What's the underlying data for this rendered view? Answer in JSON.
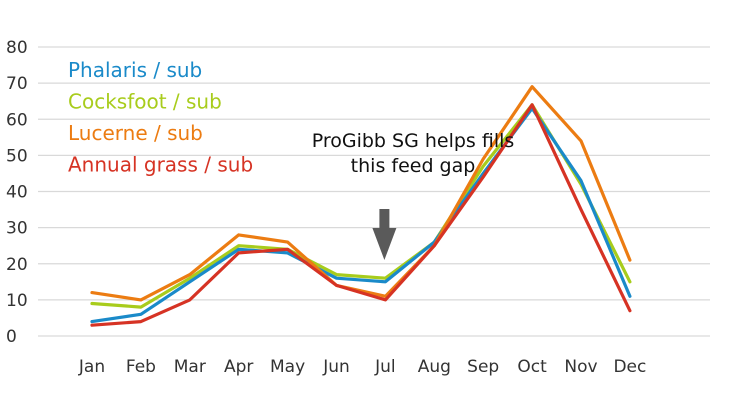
{
  "chart_data": {
    "type": "line",
    "title": "",
    "xlabel": "",
    "ylabel": "",
    "categories": [
      "Jan",
      "Feb",
      "Mar",
      "Apr",
      "May",
      "Jun",
      "Jul",
      "Aug",
      "Sep",
      "Oct",
      "Nov",
      "Dec"
    ],
    "ylim": [
      0,
      80
    ],
    "yticks": [
      0,
      10,
      20,
      30,
      40,
      50,
      60,
      70,
      80
    ],
    "grid": true,
    "legend_position": "top-left",
    "series": [
      {
        "name": "Phalaris / sub",
        "color": "#1a8ac9",
        "values": [
          4,
          6,
          15,
          24,
          23,
          16,
          15,
          26,
          45,
          63,
          43,
          11
        ]
      },
      {
        "name": "Cocksfoot / sub",
        "color": "#a8cc1c",
        "values": [
          9,
          8,
          16,
          25,
          24,
          17,
          16,
          26,
          47,
          64,
          42,
          15
        ]
      },
      {
        "name": "Lucerne / sub",
        "color": "#ec7c12",
        "values": [
          12,
          10,
          17,
          28,
          26,
          14,
          11,
          25,
          49,
          69,
          54,
          21
        ]
      },
      {
        "name": "Annual grass / sub",
        "color": "#d63324",
        "values": [
          3,
          4,
          10,
          23,
          24,
          14,
          10,
          25,
          44,
          64,
          35,
          7
        ]
      }
    ],
    "annotation": {
      "lines": [
        "ProGibb SG helps fills",
        "this feed gap"
      ],
      "category": "Jul",
      "arrow": "down-arrow-icon",
      "arrow_color": "#5a5a5a"
    }
  }
}
